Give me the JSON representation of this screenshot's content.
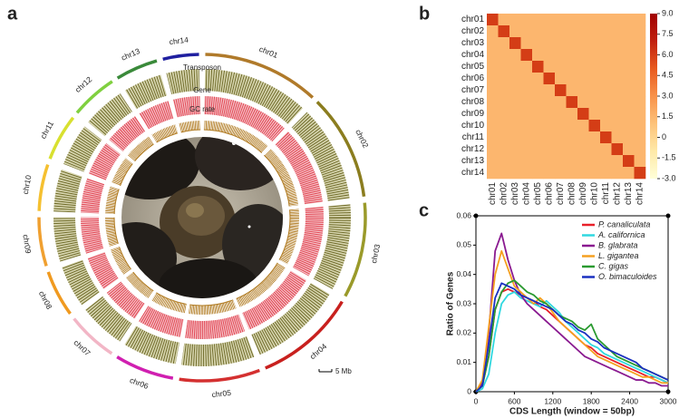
{
  "chart_data": [
    {
      "type": "circos",
      "panel": "a",
      "categories": [
        "chr01",
        "chr02",
        "chr03",
        "chr04",
        "chr05",
        "chr06",
        "chr07",
        "chr08",
        "chr09",
        "chr10",
        "chr11",
        "chr12",
        "chr13",
        "chr14"
      ],
      "values": [
        55,
        50,
        45,
        48,
        38,
        28,
        24,
        22,
        23,
        22,
        22,
        22,
        20,
        17
      ],
      "colors": [
        "#b07a2a",
        "#8b7d1f",
        "#9a9a2a",
        "#c8201e",
        "#d43030",
        "#d01fb0",
        "#f2b6c6",
        "#f09a20",
        "#f0a030",
        "#f5c030",
        "#d8e030",
        "#80d040",
        "#3a8a3a",
        "#2020a0"
      ],
      "track_labels": [
        "Transposon",
        "Gene",
        "GC rate"
      ],
      "scale_label": "5 Mb"
    },
    {
      "type": "heatmap",
      "panel": "b",
      "categories": [
        "chr01",
        "chr02",
        "chr03",
        "chr04",
        "chr05",
        "chr06",
        "chr07",
        "chr08",
        "chr09",
        "chr10",
        "chr11",
        "chr12",
        "chr13",
        "chr14"
      ],
      "values": [
        [
          6,
          1.5,
          1.5,
          1.5,
          1.5,
          1.5,
          1.5,
          1.5,
          1.5,
          1.5,
          1.5,
          1.5,
          1.5,
          1.5
        ],
        [
          1.5,
          6,
          1.5,
          1.5,
          1.5,
          1.5,
          1.5,
          1.5,
          1.5,
          1.5,
          1.5,
          1.5,
          1.5,
          1.5
        ],
        [
          1.5,
          1.5,
          6,
          1.5,
          1.5,
          1.5,
          1.5,
          1.5,
          1.5,
          1.5,
          1.5,
          1.5,
          1.5,
          1.5
        ],
        [
          1.5,
          1.5,
          1.5,
          6,
          1.5,
          1.5,
          1.5,
          1.5,
          1.5,
          1.5,
          1.5,
          1.5,
          1.5,
          1.5
        ],
        [
          1.5,
          1.5,
          1.5,
          1.5,
          6,
          1.5,
          1.5,
          1.5,
          1.5,
          1.5,
          1.5,
          1.5,
          1.5,
          1.5
        ],
        [
          1.5,
          1.5,
          1.5,
          1.5,
          1.5,
          6,
          1.5,
          1.5,
          1.5,
          1.5,
          1.5,
          1.5,
          1.5,
          1.5
        ],
        [
          1.5,
          1.5,
          1.5,
          1.5,
          1.5,
          1.5,
          6,
          1.5,
          1.5,
          1.5,
          1.5,
          1.5,
          1.5,
          1.5
        ],
        [
          1.5,
          1.5,
          1.5,
          1.5,
          1.5,
          1.5,
          1.5,
          6,
          1.5,
          1.5,
          1.5,
          1.5,
          1.5,
          1.5
        ],
        [
          1.5,
          1.5,
          1.5,
          1.5,
          1.5,
          1.5,
          1.5,
          1.5,
          6,
          1.5,
          1.5,
          1.5,
          1.5,
          1.5
        ],
        [
          1.5,
          1.5,
          1.5,
          1.5,
          1.5,
          1.5,
          1.5,
          1.5,
          1.5,
          6,
          1.5,
          1.5,
          1.5,
          1.5
        ],
        [
          1.5,
          1.5,
          1.5,
          1.5,
          1.5,
          1.5,
          1.5,
          1.5,
          1.5,
          1.5,
          6,
          1.5,
          1.5,
          1.5
        ],
        [
          1.5,
          1.5,
          1.5,
          1.5,
          1.5,
          1.5,
          1.5,
          1.5,
          1.5,
          1.5,
          1.5,
          6,
          1.5,
          1.5
        ],
        [
          1.5,
          1.5,
          1.5,
          1.5,
          1.5,
          1.5,
          1.5,
          1.5,
          1.5,
          1.5,
          1.5,
          1.5,
          6,
          1.5
        ],
        [
          1.5,
          1.5,
          1.5,
          1.5,
          1.5,
          1.5,
          1.5,
          1.5,
          1.5,
          1.5,
          1.5,
          1.5,
          1.5,
          6
        ]
      ],
      "zlim": [
        -3,
        9
      ],
      "zticks": [
        {
          "value": 9,
          "label": "9.0"
        },
        {
          "value": 7.5,
          "label": "7.5"
        },
        {
          "value": 6,
          "label": "6.0"
        },
        {
          "value": 4.5,
          "label": "4.5"
        },
        {
          "value": 3,
          "label": "3.0"
        },
        {
          "value": 1.5,
          "label": "1.5"
        },
        0,
        {
          "value": -1.5,
          "label": "-1.5"
        },
        {
          "value": -3,
          "label": "-3.0"
        }
      ],
      "colors": [
        "#ffffd8",
        "#fee9a8",
        "#fdc27a",
        "#f8924a",
        "#e85a1e",
        "#c0200e",
        "#a00000"
      ]
    },
    {
      "type": "line",
      "panel": "c",
      "xlabel": "CDS Length (window = 50bp)",
      "ylabel": "Ratio of Genes",
      "x": [
        0,
        100,
        200,
        300,
        400,
        500,
        600,
        700,
        800,
        900,
        1000,
        1100,
        1200,
        1300,
        1400,
        1500,
        1600,
        1700,
        1800,
        1900,
        2000,
        2100,
        2200,
        2300,
        2400,
        2500,
        2600,
        2700,
        2800,
        2900,
        3000
      ],
      "xlim": [
        0,
        3000
      ],
      "xticks": [
        0,
        600,
        1200,
        1800,
        2400,
        3000
      ],
      "ylim": [
        0,
        0.06
      ],
      "yticks": [
        0,
        0.01,
        0.02,
        0.03,
        0.04,
        0.05,
        0.06
      ],
      "legend": "upper right",
      "series": [
        {
          "name": "P. canaliculata",
          "color": "#e8202a",
          "values": [
            0,
            0.002,
            0.012,
            0.028,
            0.034,
            0.035,
            0.034,
            0.033,
            0.032,
            0.031,
            0.029,
            0.028,
            0.026,
            0.024,
            0.022,
            0.02,
            0.018,
            0.016,
            0.015,
            0.013,
            0.012,
            0.011,
            0.01,
            0.009,
            0.008,
            0.007,
            0.006,
            0.005,
            0.005,
            0.004,
            0.003
          ]
        },
        {
          "name": "A. californica",
          "color": "#30d8e0",
          "values": [
            0,
            0.001,
            0.006,
            0.02,
            0.03,
            0.033,
            0.034,
            0.032,
            0.031,
            0.03,
            0.029,
            0.031,
            0.029,
            0.027,
            0.024,
            0.022,
            0.02,
            0.018,
            0.016,
            0.015,
            0.013,
            0.012,
            0.011,
            0.01,
            0.009,
            0.008,
            0.007,
            0.006,
            0.005,
            0.004,
            0.003
          ]
        },
        {
          "name": "B. glabrata",
          "color": "#8a1a90",
          "values": [
            0,
            0.003,
            0.02,
            0.048,
            0.054,
            0.045,
            0.038,
            0.033,
            0.03,
            0.028,
            0.026,
            0.024,
            0.022,
            0.02,
            0.018,
            0.016,
            0.014,
            0.012,
            0.011,
            0.01,
            0.009,
            0.008,
            0.007,
            0.006,
            0.005,
            0.004,
            0.004,
            0.003,
            0.003,
            0.002,
            0.002
          ]
        },
        {
          "name": "L. gigantea",
          "color": "#f5a020",
          "values": [
            0,
            0.004,
            0.022,
            0.04,
            0.048,
            0.042,
            0.036,
            0.034,
            0.032,
            0.03,
            0.032,
            0.03,
            0.027,
            0.024,
            0.022,
            0.02,
            0.018,
            0.016,
            0.014,
            0.012,
            0.011,
            0.01,
            0.009,
            0.008,
            0.007,
            0.006,
            0.005,
            0.005,
            0.004,
            0.003,
            0.003
          ]
        },
        {
          "name": "C. gigas",
          "color": "#2a9a30",
          "values": [
            0,
            0.002,
            0.012,
            0.028,
            0.034,
            0.037,
            0.038,
            0.036,
            0.034,
            0.033,
            0.031,
            0.03,
            0.028,
            0.026,
            0.025,
            0.024,
            0.022,
            0.021,
            0.023,
            0.018,
            0.016,
            0.014,
            0.012,
            0.011,
            0.01,
            0.009,
            0.008,
            0.007,
            0.006,
            0.005,
            0.004
          ]
        },
        {
          "name": "O. bimaculoides",
          "color": "#1a30c0",
          "values": [
            0,
            0.002,
            0.016,
            0.032,
            0.037,
            0.036,
            0.035,
            0.033,
            0.032,
            0.031,
            0.03,
            0.029,
            0.028,
            0.026,
            0.024,
            0.023,
            0.021,
            0.02,
            0.018,
            0.017,
            0.015,
            0.014,
            0.013,
            0.012,
            0.011,
            0.01,
            0.008,
            0.007,
            0.006,
            0.005,
            0.004
          ]
        }
      ]
    }
  ]
}
